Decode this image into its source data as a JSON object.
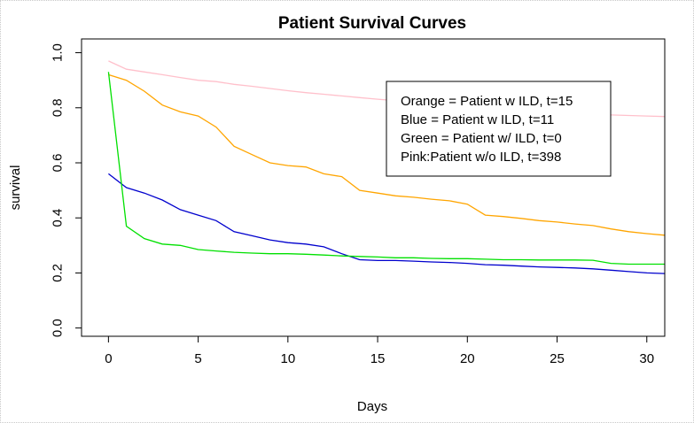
{
  "chart_data": {
    "type": "line",
    "title": "Patient Survival Curves",
    "xlabel": "Days",
    "ylabel": "survival",
    "xlim": [
      -1.5,
      31
    ],
    "ylim": [
      -0.03,
      1.05
    ],
    "xticks": [
      0,
      5,
      10,
      15,
      20,
      25,
      30
    ],
    "yticks": [
      0.0,
      0.2,
      0.4,
      0.6,
      0.8,
      1.0
    ],
    "ytick_labels": [
      "0.0",
      "0.2",
      "0.4",
      "0.6",
      "0.8",
      "1.0"
    ],
    "grid": false,
    "legend": {
      "placement": "top-right",
      "entries": [
        "Orange = Patient w ILD, t=15",
        "Blue = Patient w ILD, t=11",
        "Green = Patient w/ ILD, t=0",
        "Pink:Patient w/o ILD, t=398"
      ]
    },
    "series": [
      {
        "color": "#FFC0CB",
        "x": [
          0,
          1,
          2,
          3,
          4,
          5,
          6,
          7,
          8,
          9,
          10,
          11,
          12,
          13,
          14,
          15,
          16,
          17,
          18,
          19,
          20,
          21,
          22,
          23,
          24,
          25,
          26,
          27,
          28,
          29,
          30,
          31
        ],
        "y": [
          0.97,
          0.94,
          0.93,
          0.92,
          0.91,
          0.9,
          0.895,
          0.885,
          0.878,
          0.87,
          0.862,
          0.855,
          0.849,
          0.843,
          0.837,
          0.831,
          0.826,
          0.821,
          0.816,
          0.811,
          0.806,
          0.801,
          0.796,
          0.792,
          0.788,
          0.784,
          0.78,
          0.777,
          0.774,
          0.772,
          0.77,
          0.768
        ]
      },
      {
        "color": "#FFA500",
        "x": [
          0,
          1,
          2,
          3,
          4,
          5,
          6,
          7,
          8,
          9,
          10,
          11,
          12,
          13,
          14,
          15,
          16,
          17,
          18,
          19,
          20,
          21,
          22,
          23,
          24,
          25,
          26,
          27,
          28,
          29,
          30,
          31
        ],
        "y": [
          0.92,
          0.9,
          0.86,
          0.81,
          0.785,
          0.77,
          0.73,
          0.66,
          0.63,
          0.6,
          0.59,
          0.585,
          0.56,
          0.55,
          0.5,
          0.49,
          0.48,
          0.475,
          0.468,
          0.462,
          0.45,
          0.41,
          0.405,
          0.398,
          0.39,
          0.385,
          0.378,
          0.372,
          0.36,
          0.35,
          0.343,
          0.337
        ]
      },
      {
        "color": "#0000CD",
        "x": [
          0,
          1,
          2,
          3,
          4,
          5,
          6,
          7,
          8,
          9,
          10,
          11,
          12,
          13,
          14,
          15,
          16,
          17,
          18,
          19,
          20,
          21,
          22,
          23,
          24,
          25,
          26,
          27,
          28,
          29,
          30,
          31
        ],
        "y": [
          0.56,
          0.51,
          0.49,
          0.465,
          0.43,
          0.41,
          0.39,
          0.35,
          0.335,
          0.32,
          0.31,
          0.305,
          0.295,
          0.27,
          0.248,
          0.245,
          0.245,
          0.243,
          0.24,
          0.238,
          0.235,
          0.23,
          0.228,
          0.225,
          0.222,
          0.22,
          0.218,
          0.215,
          0.21,
          0.205,
          0.2,
          0.198
        ]
      },
      {
        "color": "#00E000",
        "x": [
          0,
          1,
          2,
          3,
          4,
          5,
          6,
          7,
          8,
          9,
          10,
          11,
          12,
          13,
          14,
          15,
          16,
          17,
          18,
          19,
          20,
          21,
          22,
          23,
          24,
          25,
          26,
          27,
          28,
          29,
          30,
          31
        ],
        "y": [
          0.93,
          0.37,
          0.325,
          0.305,
          0.3,
          0.285,
          0.28,
          0.275,
          0.272,
          0.27,
          0.27,
          0.268,
          0.265,
          0.262,
          0.26,
          0.258,
          0.255,
          0.255,
          0.253,
          0.252,
          0.252,
          0.25,
          0.248,
          0.248,
          0.247,
          0.247,
          0.247,
          0.246,
          0.235,
          0.232,
          0.232,
          0.232
        ]
      }
    ]
  }
}
